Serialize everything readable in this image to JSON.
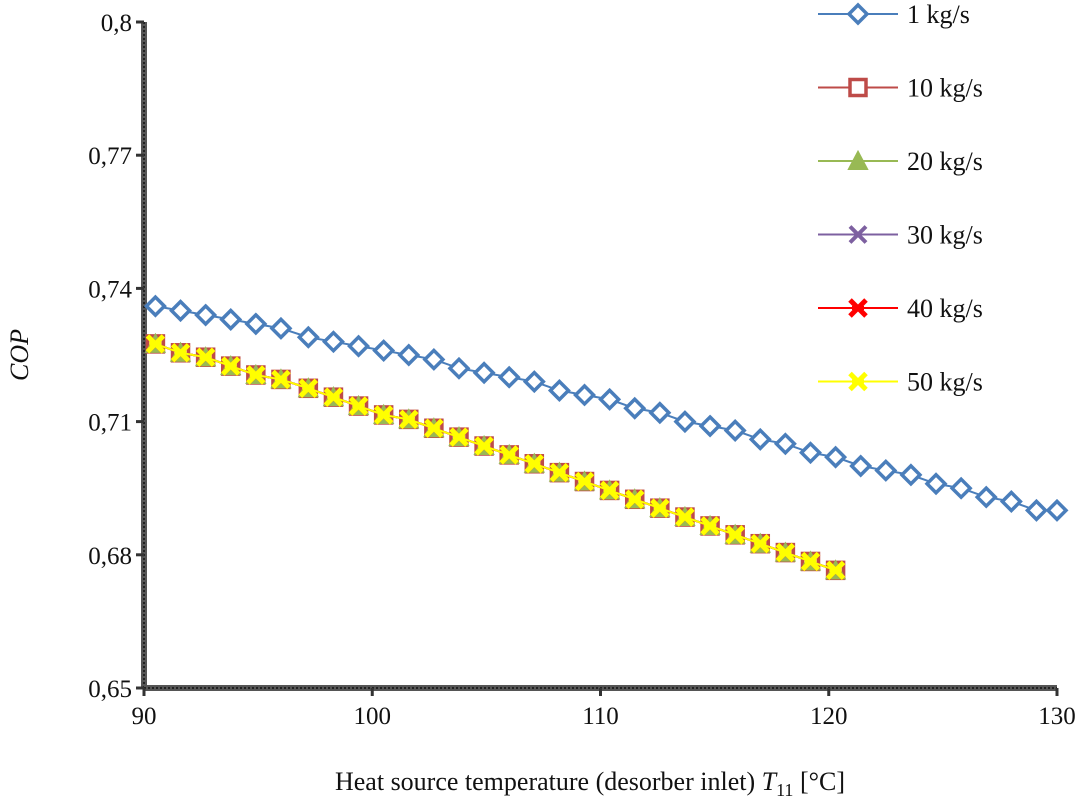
{
  "chart_data": {
    "type": "line",
    "xlabel": "Heat source temperature (desorber inlet) ",
    "xlabel_symbol": "T",
    "xlabel_subscript": "11",
    "xlabel_unit": " [°C]",
    "ylabel": "COP",
    "xlim": [
      90,
      130
    ],
    "ylim": [
      0.65,
      0.8
    ],
    "x_ticks": [
      90,
      100,
      110,
      120,
      130
    ],
    "x_tick_labels": [
      "90",
      "100",
      "110",
      "120",
      "130"
    ],
    "y_ticks": [
      0.65,
      0.68,
      0.71,
      0.74,
      0.77,
      0.8
    ],
    "y_tick_labels": [
      "0,65",
      "0,68",
      "0,71",
      "0,74",
      "0,77",
      "0,8"
    ],
    "grid": false,
    "legend_position": "top-right",
    "series": [
      {
        "name": "1 kg/s",
        "marker": "diamond",
        "color": "#4a7ebb",
        "x": [
          90.5,
          91.6,
          92.7,
          93.8,
          94.9,
          96.0,
          97.2,
          98.3,
          99.4,
          100.5,
          101.6,
          102.7,
          103.8,
          104.9,
          106.0,
          107.1,
          108.2,
          109.3,
          110.4,
          111.5,
          112.6,
          113.7,
          114.8,
          115.9,
          117.0,
          118.1,
          119.2,
          120.3,
          121.4,
          122.5,
          123.6,
          124.7,
          125.8,
          126.9,
          128.0,
          129.1,
          130.0
        ],
        "y": [
          0.736,
          0.735,
          0.734,
          0.733,
          0.732,
          0.731,
          0.729,
          0.728,
          0.727,
          0.726,
          0.725,
          0.724,
          0.722,
          0.721,
          0.72,
          0.719,
          0.717,
          0.716,
          0.715,
          0.713,
          0.712,
          0.71,
          0.709,
          0.708,
          0.706,
          0.705,
          0.703,
          0.702,
          0.7,
          0.699,
          0.698,
          0.696,
          0.695,
          0.693,
          0.692,
          0.69,
          0.69
        ]
      },
      {
        "name": "10 kg/s",
        "marker": "square",
        "color": "#be4b48",
        "x": [
          90.5,
          91.6,
          92.7,
          93.8,
          94.9,
          96.0,
          97.2,
          98.3,
          99.4,
          100.5,
          101.6,
          102.7,
          103.8,
          104.9,
          106.0,
          107.1,
          108.2,
          109.3,
          110.4,
          111.5,
          112.6,
          113.7,
          114.8,
          115.9,
          117.0,
          118.1,
          119.2,
          120.3
        ],
        "y": [
          0.7275,
          0.7255,
          0.7245,
          0.7225,
          0.7205,
          0.7195,
          0.7175,
          0.7155,
          0.7135,
          0.7115,
          0.7105,
          0.7085,
          0.7065,
          0.7045,
          0.7025,
          0.7005,
          0.6985,
          0.6965,
          0.6945,
          0.6925,
          0.6905,
          0.6885,
          0.6865,
          0.6845,
          0.6825,
          0.6805,
          0.6785,
          0.6765
        ]
      },
      {
        "name": "20 kg/s",
        "marker": "triangle",
        "color": "#98b954",
        "x": [
          90.5,
          91.6,
          92.7,
          93.8,
          94.9,
          96.0,
          97.2,
          98.3,
          99.4,
          100.5,
          101.6,
          102.7,
          103.8,
          104.9,
          106.0,
          107.1,
          108.2,
          109.3,
          110.4,
          111.5,
          112.6,
          113.7,
          114.8,
          115.9,
          117.0,
          118.1,
          119.2,
          120.3
        ],
        "y": [
          0.7275,
          0.7255,
          0.7245,
          0.7225,
          0.7205,
          0.7195,
          0.7175,
          0.7155,
          0.7135,
          0.7115,
          0.7105,
          0.7085,
          0.7065,
          0.7045,
          0.7025,
          0.7005,
          0.6985,
          0.6965,
          0.6945,
          0.6925,
          0.6905,
          0.6885,
          0.6865,
          0.6845,
          0.6825,
          0.6805,
          0.6785,
          0.6765
        ]
      },
      {
        "name": "30 kg/s",
        "marker": "x",
        "color": "#7d60a0",
        "x": [
          90.5,
          91.6,
          92.7,
          93.8,
          94.9,
          96.0,
          97.2,
          98.3,
          99.4,
          100.5,
          101.6,
          102.7,
          103.8,
          104.9,
          106.0,
          107.1,
          108.2,
          109.3,
          110.4,
          111.5,
          112.6,
          113.7,
          114.8,
          115.9,
          117.0,
          118.1,
          119.2,
          120.3
        ],
        "y": [
          0.7275,
          0.7255,
          0.7245,
          0.7225,
          0.7205,
          0.7195,
          0.7175,
          0.7155,
          0.7135,
          0.7115,
          0.7105,
          0.7085,
          0.7065,
          0.7045,
          0.7025,
          0.7005,
          0.6985,
          0.6965,
          0.6945,
          0.6925,
          0.6905,
          0.6885,
          0.6865,
          0.6845,
          0.6825,
          0.6805,
          0.6785,
          0.6765
        ]
      },
      {
        "name": "40 kg/s",
        "marker": "star",
        "color": "#ff0000",
        "x": [
          90.5,
          91.6,
          92.7,
          93.8,
          94.9,
          96.0,
          97.2,
          98.3,
          99.4,
          100.5,
          101.6,
          102.7,
          103.8,
          104.9,
          106.0,
          107.1,
          108.2,
          109.3,
          110.4,
          111.5,
          112.6,
          113.7,
          114.8,
          115.9,
          117.0,
          118.1,
          119.2,
          120.3
        ],
        "y": [
          0.7275,
          0.7255,
          0.7245,
          0.7225,
          0.7205,
          0.7195,
          0.7175,
          0.7155,
          0.7135,
          0.7115,
          0.7105,
          0.7085,
          0.7065,
          0.7045,
          0.7025,
          0.7005,
          0.6985,
          0.6965,
          0.6945,
          0.6925,
          0.6905,
          0.6885,
          0.6865,
          0.6845,
          0.6825,
          0.6805,
          0.6785,
          0.6765
        ]
      },
      {
        "name": "50 kg/s",
        "marker": "star",
        "color": "#ffff00",
        "x": [
          90.5,
          91.6,
          92.7,
          93.8,
          94.9,
          96.0,
          97.2,
          98.3,
          99.4,
          100.5,
          101.6,
          102.7,
          103.8,
          104.9,
          106.0,
          107.1,
          108.2,
          109.3,
          110.4,
          111.5,
          112.6,
          113.7,
          114.8,
          115.9,
          117.0,
          118.1,
          119.2,
          120.3
        ],
        "y": [
          0.7275,
          0.7255,
          0.7245,
          0.7225,
          0.7205,
          0.7195,
          0.7175,
          0.7155,
          0.7135,
          0.7115,
          0.7105,
          0.7085,
          0.7065,
          0.7045,
          0.7025,
          0.7005,
          0.6985,
          0.6965,
          0.6945,
          0.6925,
          0.6905,
          0.6885,
          0.6865,
          0.6845,
          0.6825,
          0.6805,
          0.6785,
          0.6765
        ]
      }
    ]
  }
}
